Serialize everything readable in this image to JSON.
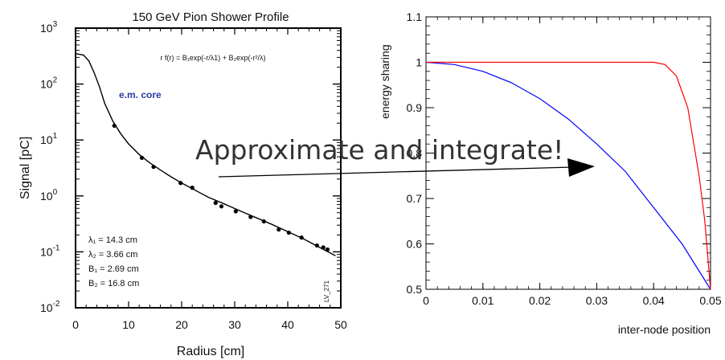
{
  "overlay_text": "Approximate and integrate!",
  "chart_data": [
    {
      "type": "scatter",
      "title": "150 GeV Pion Shower Profile",
      "xlabel": "Radius [cm]",
      "ylabel": "Signal [pC]",
      "xlim": [
        0,
        50
      ],
      "ylim": [
        0.01,
        1000
      ],
      "y_scale": "log",
      "grid": false,
      "x_ticks": [
        "0",
        "10",
        "20",
        "30",
        "40",
        "50"
      ],
      "y_tick_base": "10",
      "y_tick_exponents": [
        "-2",
        "-1",
        "0",
        "1",
        "2",
        "3"
      ],
      "formula": "r f(r) = B₁exp(-r/λ1) + B₂exp(-r²/λ)",
      "annotation": "e.m. core",
      "annotation_color": "#2b3aa0",
      "side_label": "LV_271",
      "params": [
        "λ₁ = 14.3 cm",
        "λ₂ = 3.66 cm",
        "B₁ = 2.69 cm",
        "B₂ = 16.8 cm"
      ],
      "series": [
        {
          "x": [
            7.3,
            12.5,
            14.7,
            19.8,
            22.0,
            26.4,
            27.5,
            30.2,
            33.0,
            35.5,
            38.3,
            40.2,
            42.6,
            45.5,
            46.7,
            47.5
          ],
          "y": [
            18,
            4.8,
            3.3,
            1.7,
            1.4,
            0.75,
            0.65,
            0.53,
            0.42,
            0.35,
            0.25,
            0.22,
            0.18,
            0.13,
            0.12,
            0.11
          ]
        }
      ],
      "fit_curve": {
        "x": [
          0,
          1.5,
          2.5,
          3.5,
          4.5,
          5.5,
          7,
          8.5,
          10,
          12,
          14,
          16,
          18,
          20,
          22,
          25,
          28,
          31,
          34,
          37,
          40,
          43,
          46,
          49
        ],
        "y": [
          350,
          330,
          260,
          160,
          90,
          45,
          22,
          13,
          8.5,
          5.5,
          3.9,
          2.9,
          2.2,
          1.7,
          1.35,
          0.95,
          0.72,
          0.54,
          0.41,
          0.31,
          0.23,
          0.17,
          0.12,
          0.085
        ]
      }
    },
    {
      "type": "line",
      "xlabel": "inter-node position",
      "ylabel": "energy sharing",
      "xlim": [
        0,
        0.05
      ],
      "ylim": [
        0.5,
        1.1
      ],
      "grid": false,
      "x_ticks": [
        "0",
        "0.01",
        "0.02",
        "0.03",
        "0.04",
        "0.05"
      ],
      "y_ticks": [
        "0.5",
        "0.6",
        "0.7",
        "0.8",
        "0.9",
        "1",
        "1.1"
      ],
      "series": [
        {
          "color": "#0000ff",
          "x": [
            0,
            0.005,
            0.01,
            0.015,
            0.02,
            0.025,
            0.03,
            0.035,
            0.04,
            0.045,
            0.05
          ],
          "y": [
            1.0,
            0.995,
            0.98,
            0.955,
            0.92,
            0.875,
            0.82,
            0.76,
            0.68,
            0.6,
            0.5
          ]
        },
        {
          "color": "#ff0000",
          "x": [
            0,
            0.01,
            0.02,
            0.03,
            0.04,
            0.042,
            0.044,
            0.046,
            0.048,
            0.049,
            0.05
          ],
          "y": [
            1.0,
            1.0,
            1.0,
            1.0,
            1.0,
            0.995,
            0.97,
            0.9,
            0.75,
            0.65,
            0.5
          ]
        }
      ]
    }
  ]
}
